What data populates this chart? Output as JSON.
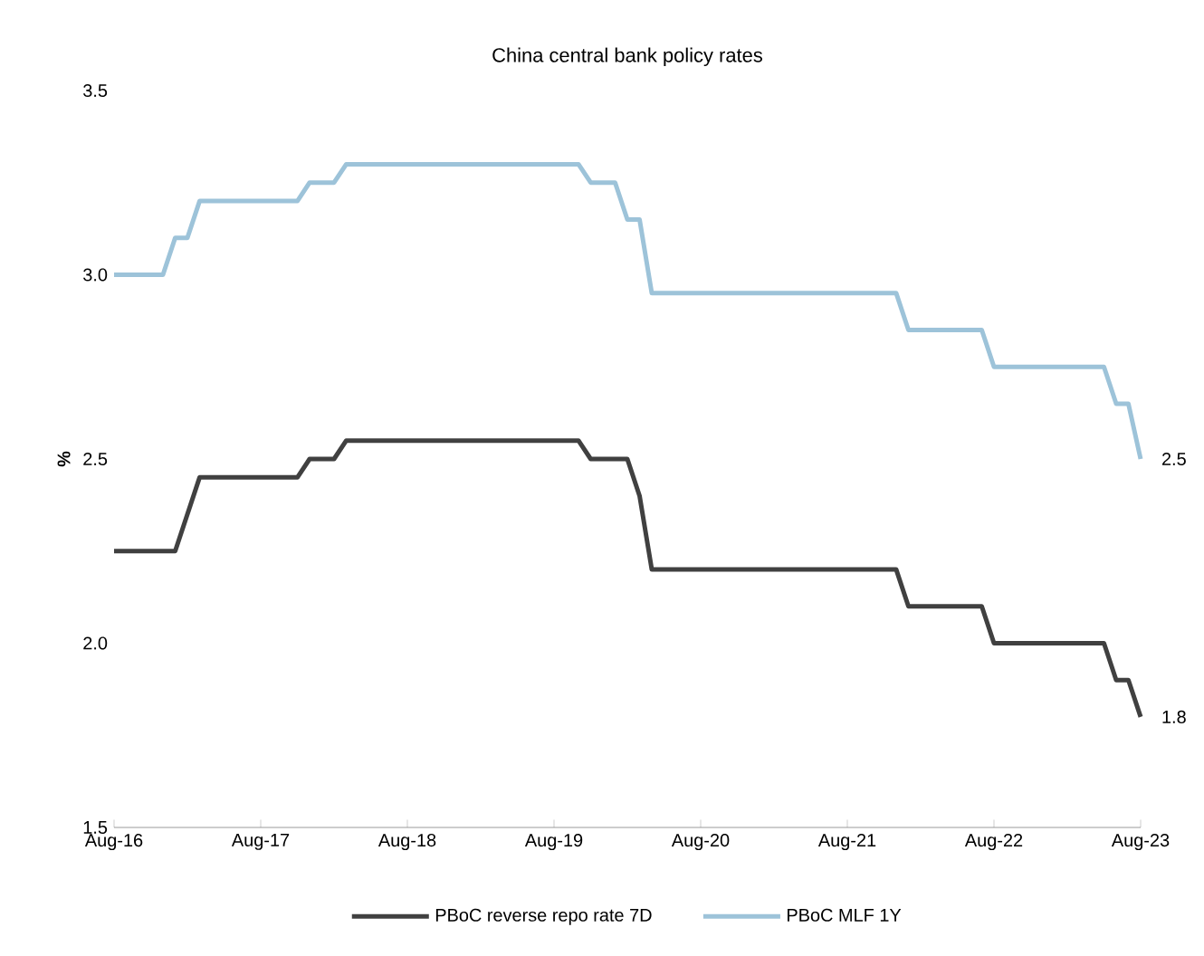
{
  "chart_data": {
    "type": "line",
    "title": "China central bank policy rates",
    "ylabel": "%",
    "xlim": [
      "2016-08",
      "2023-08"
    ],
    "ylim": [
      1.5,
      3.5
    ],
    "xticks": [
      {
        "value": "2016-08",
        "label": "Aug-16"
      },
      {
        "value": "2017-08",
        "label": "Aug-17"
      },
      {
        "value": "2018-08",
        "label": "Aug-18"
      },
      {
        "value": "2019-08",
        "label": "Aug-19"
      },
      {
        "value": "2020-08",
        "label": "Aug-20"
      },
      {
        "value": "2021-08",
        "label": "Aug-21"
      },
      {
        "value": "2022-08",
        "label": "Aug-22"
      },
      {
        "value": "2023-08",
        "label": "Aug-23"
      }
    ],
    "yticks": [
      {
        "value": 1.5,
        "label": "1.5"
      },
      {
        "value": 2.0,
        "label": "2.0"
      },
      {
        "value": 2.5,
        "label": "2.5"
      },
      {
        "value": 3.0,
        "label": "3.0"
      },
      {
        "value": 3.5,
        "label": "3.5"
      }
    ],
    "legend": "bottom",
    "series": [
      {
        "name": "PBoC reverse repo rate 7D",
        "color": "#404040",
        "x": [
          "2016-08",
          "2017-01",
          "2017-02",
          "2017-03",
          "2017-11",
          "2017-12",
          "2018-02",
          "2018-03",
          "2019-10",
          "2019-11",
          "2020-02",
          "2020-03",
          "2020-04",
          "2021-12",
          "2022-01",
          "2022-07",
          "2022-08",
          "2023-05",
          "2023-06",
          "2023-07",
          "2023-08"
        ],
        "values": [
          2.25,
          2.25,
          2.35,
          2.45,
          2.45,
          2.5,
          2.5,
          2.55,
          2.55,
          2.5,
          2.5,
          2.4,
          2.2,
          2.2,
          2.1,
          2.1,
          2.0,
          2.0,
          1.9,
          1.9,
          1.8
        ]
      },
      {
        "name": "PBoC MLF 1Y",
        "color": "#9dc3d9",
        "x": [
          "2016-08",
          "2016-12",
          "2017-01",
          "2017-02",
          "2017-03",
          "2017-11",
          "2017-12",
          "2018-02",
          "2018-03",
          "2019-10",
          "2019-11",
          "2020-01",
          "2020-02",
          "2020-03",
          "2020-04",
          "2021-12",
          "2022-01",
          "2022-07",
          "2022-08",
          "2023-05",
          "2023-06",
          "2023-07",
          "2023-08"
        ],
        "values": [
          3.0,
          3.0,
          3.1,
          3.1,
          3.2,
          3.2,
          3.25,
          3.25,
          3.3,
          3.3,
          3.25,
          3.25,
          3.15,
          3.15,
          2.95,
          2.95,
          2.85,
          2.85,
          2.75,
          2.75,
          2.65,
          2.65,
          2.5
        ]
      }
    ],
    "annotations": [
      {
        "text": "2.5",
        "x": "2023-08",
        "y": 2.5
      },
      {
        "text": "1.8",
        "x": "2023-08",
        "y": 1.8
      }
    ]
  }
}
